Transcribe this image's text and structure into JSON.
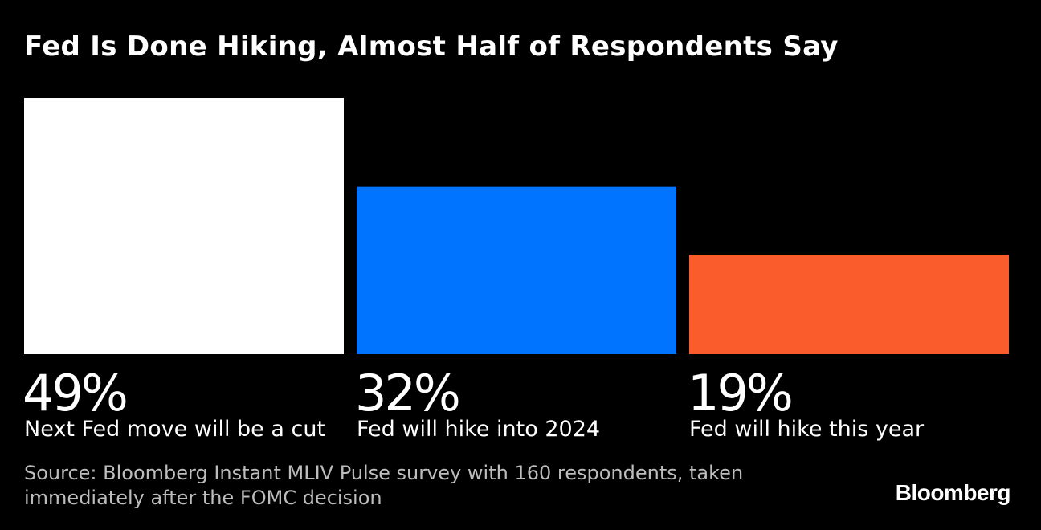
{
  "chart_data": {
    "type": "bar",
    "title": "Fed Is Done Hiking, Almost Half of Respondents Say",
    "categories": [
      "Next Fed move will be a cut",
      "Fed will hike into 2024",
      "Fed will hike this year"
    ],
    "values": [
      49,
      32,
      19
    ],
    "value_labels": [
      "49%",
      "32%",
      "19%"
    ],
    "colors": [
      "#ffffff",
      "#0073ff",
      "#fa5c2b"
    ],
    "ylim": [
      0,
      49
    ],
    "grid": false,
    "source": "Source: Bloomberg Instant MLIV Pulse survey with 160 respondents, taken immediately after the FOMC decision",
    "brand": "Bloomberg"
  }
}
